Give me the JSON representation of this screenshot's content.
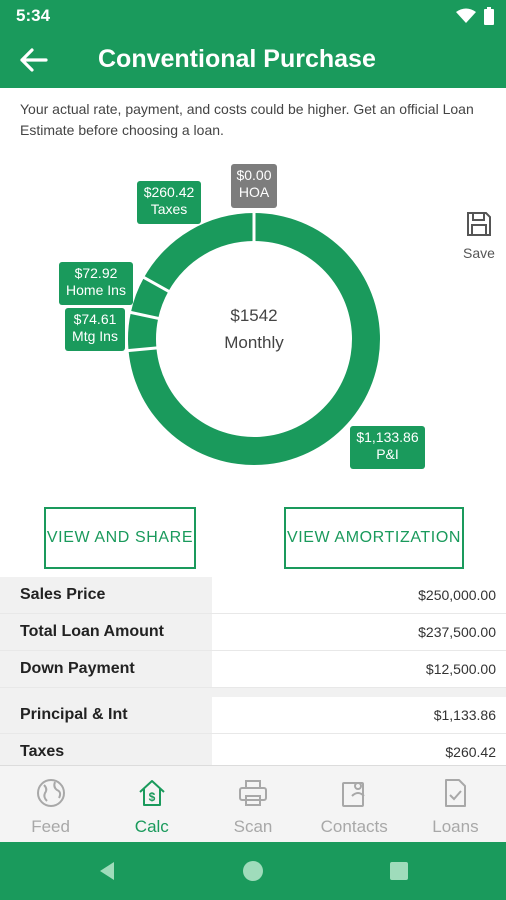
{
  "status_bar": {
    "time": "5:34",
    "icons": [
      "wifi-icon",
      "battery-icon"
    ]
  },
  "header": {
    "title": "Conventional Purchase"
  },
  "disclaimer": "Your actual rate, payment, and costs could be higher. Get an official Loan Estimate before choosing a loan.",
  "chart": {
    "center_amount": "$1542",
    "center_label": "Monthly",
    "save_label": "Save"
  },
  "chart_data": {
    "type": "pie",
    "title": "",
    "categories": [
      "P&I",
      "Mtg Ins",
      "Home Ins",
      "Taxes",
      "HOA"
    ],
    "values": [
      1133.86,
      74.61,
      72.92,
      260.42,
      0.0
    ],
    "value_labels": [
      "$1,133.86",
      "$74.61",
      "$72.92",
      "$260.42",
      "$0.00"
    ],
    "total": 1542,
    "colors": {
      "slice": "#1a9a5c",
      "separator": "#ffffff",
      "hoa_label": "#7d7d7d"
    }
  },
  "buttons": {
    "view_share": "VIEW AND SHARE",
    "view_amortization": "VIEW AMORTIZATION"
  },
  "table": {
    "group1": [
      {
        "label": "Sales Price",
        "value": "$250,000.00"
      },
      {
        "label": "Total Loan Amount",
        "value": "$237,500.00"
      },
      {
        "label": "Down Payment",
        "value": "$12,500.00"
      }
    ],
    "group2": [
      {
        "label": "Principal & Int",
        "value": "$1,133.86"
      },
      {
        "label": "Taxes",
        "value": "$260.42"
      }
    ]
  },
  "nav": {
    "items": [
      {
        "label": "Feed",
        "icon": "globe-icon"
      },
      {
        "label": "Calc",
        "icon": "house-dollar-icon"
      },
      {
        "label": "Scan",
        "icon": "printer-icon"
      },
      {
        "label": "Contacts",
        "icon": "contacts-icon"
      },
      {
        "label": "Loans",
        "icon": "document-check-icon"
      }
    ],
    "active": "Calc"
  },
  "theme": {
    "primary": "#1a9a5c"
  }
}
